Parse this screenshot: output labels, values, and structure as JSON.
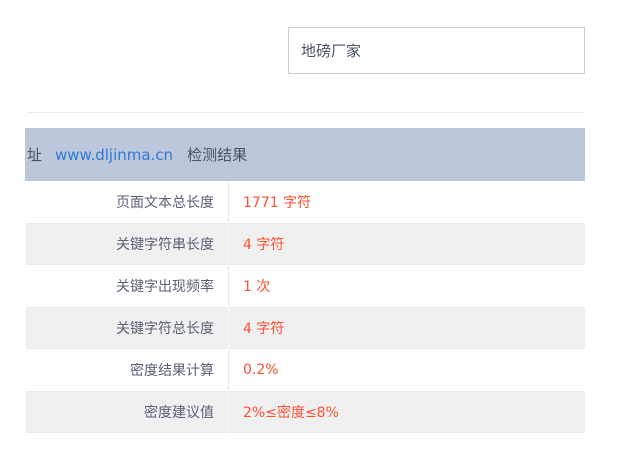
{
  "colors": {
    "header_bg": "#bdc7db",
    "header_text": "#4a5260",
    "link_text": "#2d7ad8",
    "label_text": "#5a6175",
    "value_text": "#ff5032",
    "row_alt_bg": "#f0f0f0"
  },
  "keyword_input": {
    "value": "地磅厂家"
  },
  "result_header": {
    "prefix": "址",
    "url": "www.dljinma.cn",
    "title": "检测结果"
  },
  "result_table": {
    "rows": [
      {
        "label": "页面文本总长度",
        "value": "1771 字符"
      },
      {
        "label": "关键字符串长度",
        "value": "4 字符"
      },
      {
        "label": "关键字出现频率",
        "value": "1 次"
      },
      {
        "label": "关键字符总长度",
        "value": "4 字符"
      },
      {
        "label": "密度结果计算",
        "value": "0.2%"
      },
      {
        "label": "密度建议值",
        "value": "2%≤密度≤8%"
      }
    ]
  }
}
